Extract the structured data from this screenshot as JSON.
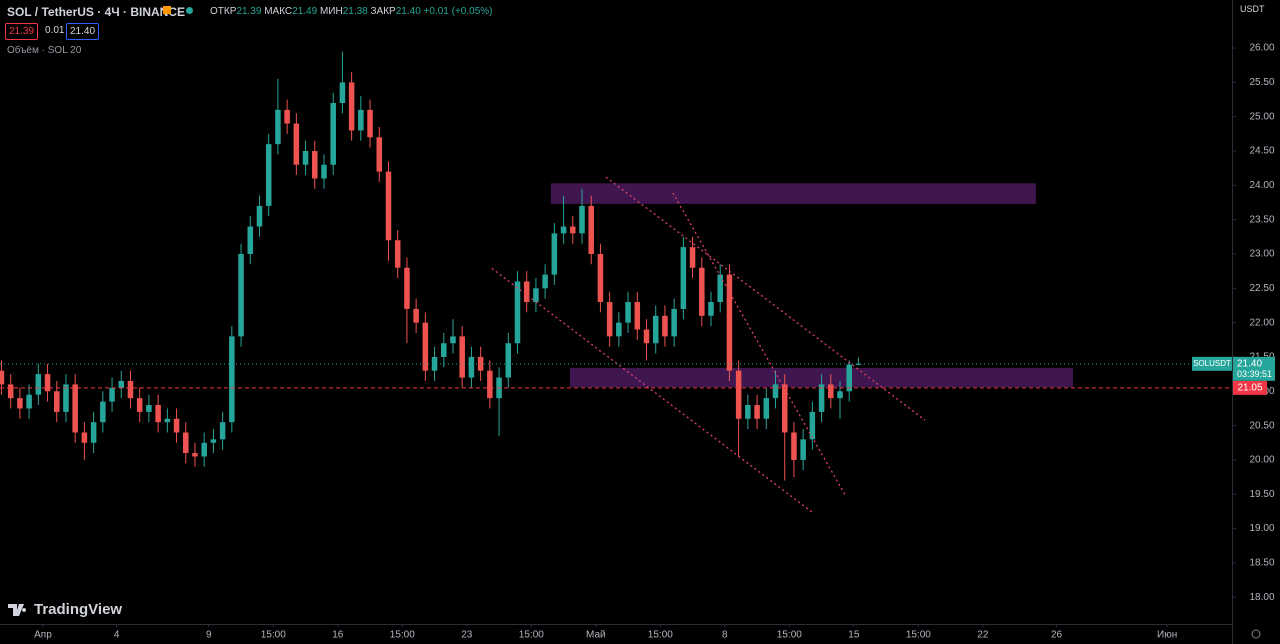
{
  "header": {
    "symbol": "SOL / TetherUS · 4Ч · BINANCE",
    "open_label": "ОТКР",
    "open": "21.39",
    "high_label": "МАКС",
    "high": "21.49",
    "low_label": "МИН",
    "low": "21.38",
    "close_label": "ЗАКР",
    "close": "21.40",
    "change": "+0.01 (+0.05%)",
    "sell_price": "21.39",
    "spread": "0.01",
    "buy_price": "21.40",
    "volume_indicator": "Объём · SOL 20",
    "currency": "USDT",
    "logo": "TradingView"
  },
  "chart_data": {
    "type": "candlestick",
    "up_color": "#26a69a",
    "down_color": "#ef5350",
    "x": [
      -2.25,
      -1.75,
      -1.25,
      -0.75,
      -0.25,
      0.25,
      0.75,
      1.25,
      1.75,
      2.25,
      2.75,
      3.25,
      3.75,
      4.25,
      4.75,
      5.25,
      5.75,
      6.25,
      6.75,
      7.25,
      7.75,
      8.25,
      8.75,
      9.25,
      9.75,
      10.25,
      10.75,
      11.25,
      11.75,
      12.25,
      12.75,
      13.25,
      13.75,
      14.25,
      14.75,
      15.25,
      15.75,
      16.25,
      16.75,
      17.25,
      17.75,
      18.25,
      18.75,
      19.25,
      19.75,
      20.25,
      20.75,
      21.25,
      21.75,
      22.25,
      22.75,
      23.25,
      23.75,
      24.25,
      24.75,
      25.25,
      25.75,
      26.25,
      26.75,
      27.25,
      27.75,
      28.25,
      28.75,
      29.25,
      29.75,
      30.25,
      30.75,
      31.25,
      31.75,
      32.25,
      32.75,
      33.25,
      33.75,
      34.25,
      34.75,
      35.25,
      35.75,
      36.25,
      36.75,
      37.25,
      37.75,
      38.25,
      38.75,
      39.25,
      39.75,
      40.25,
      40.75,
      41.25,
      41.75,
      42.25,
      42.75,
      43.25,
      43.75,
      44.25
    ],
    "open": [
      21.3,
      21.1,
      20.9,
      20.75,
      20.95,
      21.25,
      21.0,
      20.7,
      21.1,
      20.4,
      20.25,
      20.55,
      20.85,
      21.05,
      21.15,
      20.9,
      20.7,
      20.8,
      20.55,
      20.6,
      20.4,
      20.1,
      20.05,
      20.25,
      20.3,
      20.55,
      21.8,
      23.0,
      23.4,
      23.7,
      24.6,
      25.1,
      24.9,
      24.3,
      24.5,
      24.1,
      24.3,
      25.2,
      25.5,
      24.8,
      25.1,
      24.7,
      24.2,
      23.2,
      22.8,
      22.2,
      22.0,
      21.3,
      21.5,
      21.7,
      21.8,
      21.2,
      21.5,
      21.3,
      20.9,
      21.2,
      21.7,
      22.6,
      22.3,
      22.5,
      22.7,
      23.3,
      23.4,
      23.3,
      23.7,
      23.0,
      22.3,
      21.8,
      22.0,
      22.3,
      21.9,
      21.7,
      22.1,
      21.8,
      22.2,
      23.1,
      22.8,
      22.1,
      22.3,
      22.7,
      21.3,
      20.6,
      20.8,
      20.6,
      20.9,
      21.1,
      20.4,
      20.0,
      20.3,
      20.7,
      21.1,
      20.9,
      21.0,
      21.39
    ],
    "high": [
      21.45,
      21.25,
      21.05,
      21.1,
      21.4,
      21.4,
      21.15,
      21.25,
      21.25,
      20.55,
      20.7,
      21.0,
      21.2,
      21.3,
      21.3,
      21.05,
      20.95,
      20.95,
      20.75,
      20.75,
      20.55,
      20.25,
      20.4,
      20.45,
      20.7,
      21.95,
      23.15,
      23.55,
      23.85,
      24.75,
      25.55,
      25.25,
      25.05,
      24.65,
      24.65,
      24.45,
      25.35,
      25.95,
      25.65,
      25.3,
      25.25,
      24.85,
      24.35,
      23.35,
      22.95,
      22.35,
      22.15,
      21.65,
      21.85,
      22.05,
      21.95,
      21.65,
      21.65,
      21.45,
      21.35,
      21.85,
      22.75,
      22.75,
      22.65,
      22.85,
      23.45,
      23.85,
      23.55,
      23.95,
      23.85,
      23.15,
      22.45,
      22.15,
      22.45,
      22.45,
      22.05,
      22.25,
      22.25,
      22.35,
      23.25,
      23.25,
      22.95,
      22.45,
      22.85,
      22.85,
      21.45,
      20.95,
      20.95,
      21.05,
      21.3,
      21.25,
      20.55,
      20.45,
      20.85,
      21.25,
      21.25,
      21.15,
      21.45,
      21.49
    ],
    "low": [
      20.95,
      20.75,
      20.6,
      20.6,
      20.8,
      20.85,
      20.55,
      20.55,
      20.25,
      20.0,
      20.1,
      20.4,
      20.7,
      20.9,
      20.75,
      20.55,
      20.55,
      20.4,
      20.4,
      20.25,
      19.95,
      19.9,
      19.9,
      20.1,
      20.15,
      20.4,
      21.65,
      22.85,
      23.25,
      23.55,
      24.45,
      24.75,
      24.15,
      24.15,
      23.95,
      23.95,
      24.15,
      25.05,
      24.65,
      24.65,
      24.55,
      24.05,
      22.9,
      22.65,
      21.7,
      21.85,
      21.15,
      21.15,
      21.35,
      21.55,
      21.05,
      21.05,
      21.15,
      20.75,
      20.35,
      21.05,
      21.55,
      22.15,
      22.15,
      22.35,
      22.55,
      23.15,
      23.15,
      23.15,
      22.85,
      22.15,
      21.65,
      21.65,
      21.85,
      21.75,
      21.45,
      21.55,
      21.65,
      21.65,
      22.05,
      22.65,
      21.95,
      21.95,
      22.15,
      21.15,
      20.05,
      20.45,
      20.45,
      20.45,
      20.75,
      19.7,
      19.75,
      19.85,
      20.15,
      20.55,
      20.75,
      20.6,
      20.85,
      21.38
    ],
    "close": [
      21.1,
      20.9,
      20.75,
      20.95,
      21.25,
      21.0,
      20.7,
      21.1,
      20.4,
      20.25,
      20.55,
      20.85,
      21.05,
      21.15,
      20.9,
      20.7,
      20.8,
      20.55,
      20.6,
      20.4,
      20.1,
      20.05,
      20.25,
      20.3,
      20.55,
      21.8,
      23.0,
      23.4,
      23.7,
      24.6,
      25.1,
      24.9,
      24.3,
      24.5,
      24.1,
      24.3,
      25.2,
      25.5,
      24.8,
      25.1,
      24.7,
      24.2,
      23.2,
      22.8,
      22.2,
      22.0,
      21.3,
      21.5,
      21.7,
      21.8,
      21.2,
      21.5,
      21.3,
      20.9,
      21.2,
      21.7,
      22.6,
      22.3,
      22.5,
      22.7,
      23.3,
      23.4,
      23.3,
      23.7,
      23.0,
      22.3,
      21.8,
      22.0,
      22.3,
      21.9,
      21.7,
      22.1,
      21.8,
      22.2,
      23.1,
      22.8,
      22.1,
      22.3,
      22.7,
      21.3,
      20.6,
      20.8,
      20.6,
      20.9,
      21.1,
      20.4,
      20.0,
      20.3,
      20.7,
      21.1,
      20.9,
      21.0,
      21.39,
      21.4
    ],
    "xlim": [
      -2.33,
      64.52
    ],
    "ylim": [
      17.61,
      26.7
    ],
    "xticks": [
      {
        "value": 0,
        "label": "Апр"
      },
      4,
      9,
      {
        "value": 12.5,
        "label": "15:00"
      },
      16,
      {
        "value": 19.5,
        "label": "15:00"
      },
      23,
      {
        "value": 26.5,
        "label": "15:00"
      },
      {
        "value": 30,
        "label": "Май"
      },
      {
        "value": 33.5,
        "label": "15:00"
      },
      {
        "value": 37,
        "label": "8"
      },
      {
        "value": 40.5,
        "label": "15:00"
      },
      {
        "value": 44,
        "label": "15"
      },
      {
        "value": 47.5,
        "label": "15:00"
      },
      {
        "value": 51,
        "label": "22"
      },
      {
        "value": 55,
        "label": "26"
      },
      {
        "value": 61,
        "label": "Июн"
      }
    ],
    "yticks": [
      {
        "value": 18,
        "label": "18.00"
      },
      {
        "value": 18.5,
        "label": "18.50"
      },
      {
        "value": 19,
        "label": "19.00"
      },
      {
        "value": 19.5,
        "label": "19.50"
      },
      {
        "value": 20,
        "label": "20.00"
      },
      {
        "value": 20.5,
        "label": "20.50"
      },
      {
        "value": 21,
        "label": "21.00"
      },
      {
        "value": 21.5,
        "label": "21.50"
      },
      {
        "value": 22,
        "label": "22.00"
      },
      {
        "value": 22.5,
        "label": "22.50"
      },
      {
        "value": 23,
        "label": "23.00"
      },
      {
        "value": 23.5,
        "label": "23.50"
      },
      {
        "value": 24,
        "label": "24.00"
      },
      {
        "value": 24.5,
        "label": "24.50"
      },
      {
        "value": 25,
        "label": "25.00"
      },
      {
        "value": 25.5,
        "label": "25.50"
      },
      {
        "value": 26,
        "label": "26.00"
      }
    ],
    "zones": [
      {
        "color": "#4a1a5e",
        "x": [
          27.56,
          53.88
        ],
        "y": [
          23.73,
          24.03
        ]
      },
      {
        "color": "#4a1a5e",
        "x": [
          28.6,
          55.89
        ],
        "y": [
          21.06,
          21.34
        ]
      }
    ],
    "trendlines": [
      {
        "color": "#e0406a",
        "x": [
          30.55,
          47.86
        ],
        "y": [
          24.12,
          20.58
        ]
      },
      {
        "color": "#e0406a",
        "x": [
          24.36,
          41.73
        ],
        "y": [
          22.79,
          19.24
        ]
      },
      {
        "color": "#e0406a",
        "x": [
          34.18,
          43.57
        ],
        "y": [
          23.89,
          19.47
        ]
      }
    ],
    "last_price": {
      "name": "SOLUSDT",
      "value": 21.4,
      "label": "21.40",
      "timer": "03:39:51",
      "color": "#26a69a"
    },
    "alert_line": {
      "value": 21.05,
      "label": "21.05",
      "color": "#f23645"
    }
  }
}
